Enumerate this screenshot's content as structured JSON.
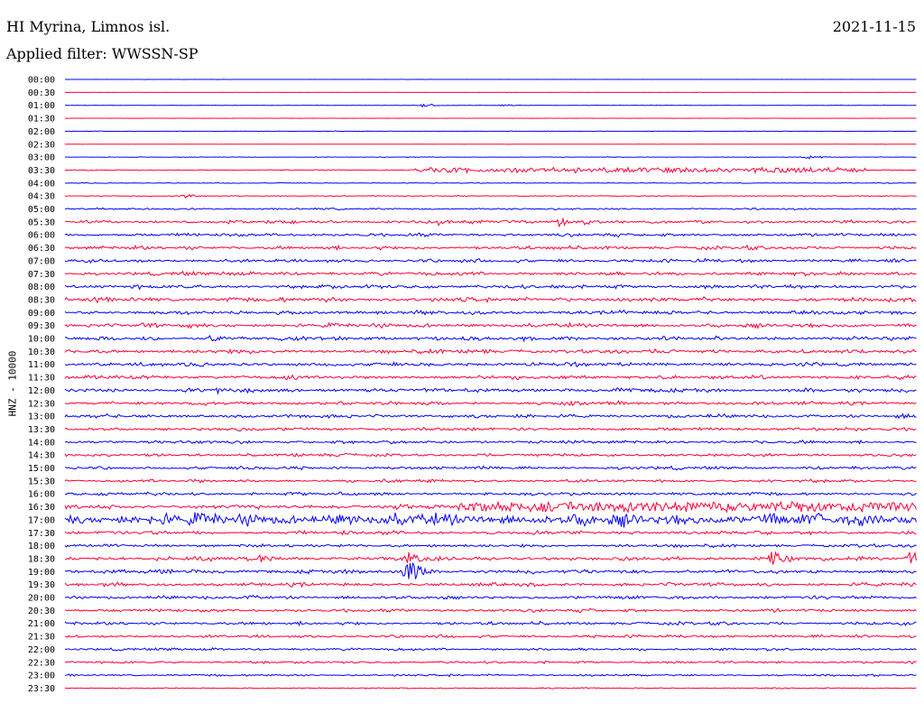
{
  "header": {
    "station": "HI Myrina, Limnos isl.",
    "date": "2021-11-15",
    "filter": "Applied filter: WWSSN-SP"
  },
  "chart_data": {
    "type": "line",
    "title": "HI Myrina, Limnos isl.",
    "subtitle": "Applied filter: WWSSN-SP",
    "ylabel": "HNZ - 10000",
    "xlabel": "",
    "tick_labels": [
      "00:00",
      "00:30",
      "01:00",
      "01:30",
      "02:00",
      "02:30",
      "03:00",
      "03:30",
      "04:00",
      "04:30",
      "05:00",
      "05:30",
      "06:00",
      "06:30",
      "07:00",
      "07:30",
      "08:00",
      "08:30",
      "09:00",
      "09:30",
      "10:00",
      "10:30",
      "11:00",
      "11:30",
      "12:00",
      "12:30",
      "13:00",
      "13:30",
      "14:00",
      "14:30",
      "15:00",
      "15:30",
      "16:00",
      "16:30",
      "17:00",
      "17:30",
      "18:00",
      "18:30",
      "19:00",
      "19:30",
      "20:00",
      "20:30",
      "21:00",
      "21:30",
      "22:00",
      "22:30",
      "23:00",
      "23:30"
    ],
    "trace_colors": [
      "#0000ff",
      "#ff0033"
    ],
    "noise_level": [
      0.1,
      0.1,
      0.2,
      0.1,
      0.2,
      0.1,
      0.3,
      0.5,
      0.4,
      0.5,
      0.9,
      1.6,
      1.6,
      1.8,
      1.7,
      1.9,
      1.9,
      2.2,
      1.9,
      2.0,
      2.0,
      2.1,
      1.9,
      2.0,
      2.0,
      1.8,
      1.7,
      1.7,
      1.6,
      1.6,
      1.5,
      1.5,
      1.6,
      2.0,
      6.0,
      1.8,
      1.6,
      1.9,
      2.0,
      1.8,
      1.7,
      1.6,
      1.6,
      1.4,
      1.3,
      1.2,
      1.0,
      0.6
    ],
    "events": [
      {
        "row": 2,
        "x_frac": 0.42,
        "amp": 3
      },
      {
        "row": 2,
        "x_frac": 0.51,
        "amp": 2
      },
      {
        "row": 6,
        "x_frac": 0.87,
        "amp": 4
      },
      {
        "row": 7,
        "x_frac": 0.9,
        "amp": 9
      },
      {
        "row": 9,
        "x_frac": 0.14,
        "amp": 4
      },
      {
        "row": 11,
        "x_frac": 0.44,
        "amp": 6
      },
      {
        "row": 11,
        "x_frac": 0.58,
        "amp": 7
      },
      {
        "row": 11,
        "x_frac": 0.61,
        "amp": 6
      },
      {
        "row": 20,
        "x_frac": 0.17,
        "amp": 6
      },
      {
        "row": 24,
        "x_frac": 0.18,
        "amp": 5
      },
      {
        "row": 33,
        "x_frac": 0.39,
        "amp": 8
      },
      {
        "row": 37,
        "x_frac": 0.23,
        "amp": 9
      },
      {
        "row": 37,
        "x_frac": 0.4,
        "amp": 12
      },
      {
        "row": 37,
        "x_frac": 0.83,
        "amp": 16
      },
      {
        "row": 37,
        "x_frac": 0.99,
        "amp": 12
      },
      {
        "row": 38,
        "x_frac": 0.4,
        "amp": 22
      }
    ],
    "sustained": [
      {
        "row": 7,
        "start_frac": 0.41,
        "end_frac": 0.94,
        "amp": 3
      },
      {
        "row": 33,
        "start_frac": 0.46,
        "end_frac": 1.0,
        "amp": 6
      }
    ]
  }
}
